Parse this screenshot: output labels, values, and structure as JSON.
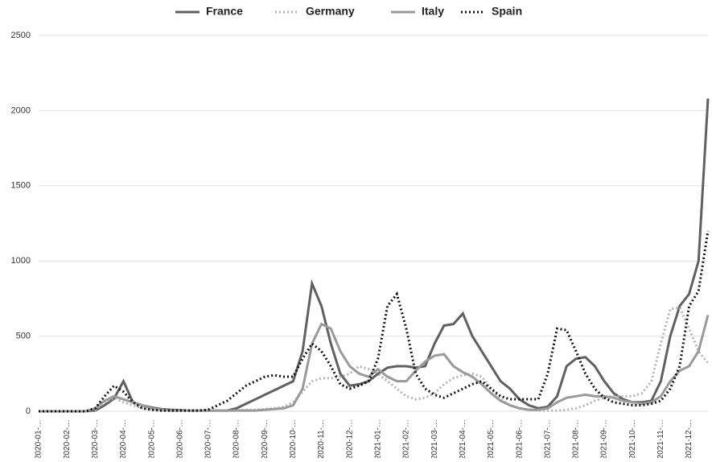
{
  "chart_data": {
    "type": "line",
    "categories": [
      "2020-01-…",
      null,
      null,
      "2020-02-…",
      null,
      null,
      "2020-03-…",
      null,
      null,
      "2020-04-…",
      null,
      null,
      "2020-05-…",
      null,
      null,
      "2020-06-…",
      null,
      null,
      "2020-07-…",
      null,
      null,
      "2020-08-…",
      null,
      null,
      "2020-09-…",
      null,
      null,
      "2020-10-…",
      null,
      null,
      "2020-11-…",
      null,
      null,
      "2020-12-…",
      null,
      null,
      "2021-01-…",
      null,
      null,
      "2021-02-…",
      null,
      null,
      "2021-03-…",
      null,
      null,
      "2021-04-…",
      null,
      null,
      "2021-05-…",
      null,
      null,
      "2021-06-…",
      null,
      null,
      "2021-07-…",
      null,
      null,
      "2021-08-…",
      null,
      null,
      "2021-09-…",
      null,
      null,
      "2021-10-…",
      null,
      null,
      "2021-11-…",
      null,
      null,
      "2021-12-…",
      null,
      null
    ],
    "series": [
      {
        "name": "France",
        "color": "#606060",
        "dash": "solid",
        "values": [
          0,
          0,
          0,
          0,
          0,
          0,
          5,
          40,
          85,
          200,
          60,
          40,
          25,
          15,
          10,
          8,
          5,
          5,
          5,
          5,
          5,
          20,
          50,
          80,
          110,
          140,
          170,
          200,
          400,
          850,
          700,
          450,
          250,
          170,
          180,
          200,
          250,
          290,
          300,
          300,
          290,
          300,
          450,
          570,
          580,
          650,
          500,
          400,
          300,
          200,
          150,
          80,
          40,
          20,
          30,
          100,
          300,
          350,
          360,
          300,
          200,
          120,
          80,
          60,
          60,
          70,
          200,
          500,
          700,
          780,
          1000,
          2080
        ]
      },
      {
        "name": "Germany",
        "color": "#b4b4b4",
        "dash": "dotted",
        "values": [
          0,
          0,
          0,
          0,
          0,
          0,
          10,
          60,
          90,
          60,
          40,
          20,
          10,
          5,
          5,
          5,
          5,
          5,
          5,
          5,
          5,
          5,
          10,
          10,
          15,
          20,
          30,
          60,
          130,
          200,
          220,
          220,
          230,
          250,
          300,
          280,
          250,
          200,
          150,
          100,
          80,
          90,
          120,
          180,
          220,
          240,
          250,
          230,
          150,
          80,
          40,
          20,
          10,
          5,
          5,
          5,
          10,
          20,
          40,
          70,
          90,
          100,
          100,
          100,
          120,
          200,
          450,
          680,
          690,
          550,
          400,
          320
        ]
      },
      {
        "name": "Italy",
        "color": "#9a9a9a",
        "dash": "solid",
        "values": [
          0,
          0,
          0,
          0,
          0,
          0,
          20,
          70,
          100,
          80,
          60,
          40,
          20,
          10,
          5,
          5,
          5,
          5,
          5,
          5,
          5,
          5,
          5,
          5,
          10,
          15,
          20,
          40,
          150,
          450,
          580,
          550,
          400,
          300,
          250,
          230,
          280,
          230,
          200,
          200,
          270,
          330,
          370,
          380,
          300,
          260,
          230,
          180,
          120,
          70,
          40,
          20,
          10,
          10,
          20,
          60,
          90,
          100,
          110,
          100,
          100,
          90,
          70,
          60,
          50,
          60,
          100,
          200,
          270,
          300,
          400,
          640
        ]
      },
      {
        "name": "Spain",
        "color": "#111111",
        "dash": "dotted",
        "values": [
          0,
          0,
          0,
          0,
          0,
          0,
          20,
          100,
          170,
          130,
          60,
          20,
          10,
          5,
          5,
          5,
          5,
          5,
          10,
          40,
          70,
          120,
          170,
          200,
          230,
          240,
          230,
          230,
          350,
          450,
          400,
          300,
          180,
          150,
          170,
          200,
          350,
          700,
          780,
          550,
          250,
          150,
          110,
          90,
          120,
          150,
          180,
          200,
          150,
          100,
          80,
          80,
          80,
          80,
          250,
          550,
          540,
          400,
          250,
          150,
          90,
          60,
          50,
          40,
          40,
          50,
          70,
          150,
          300,
          700,
          800,
          1200
        ]
      }
    ],
    "ylim": [
      0,
      2500
    ],
    "yticks": [
      0,
      500,
      1000,
      1500,
      2000,
      2500
    ],
    "grid": true,
    "legend": "top"
  }
}
